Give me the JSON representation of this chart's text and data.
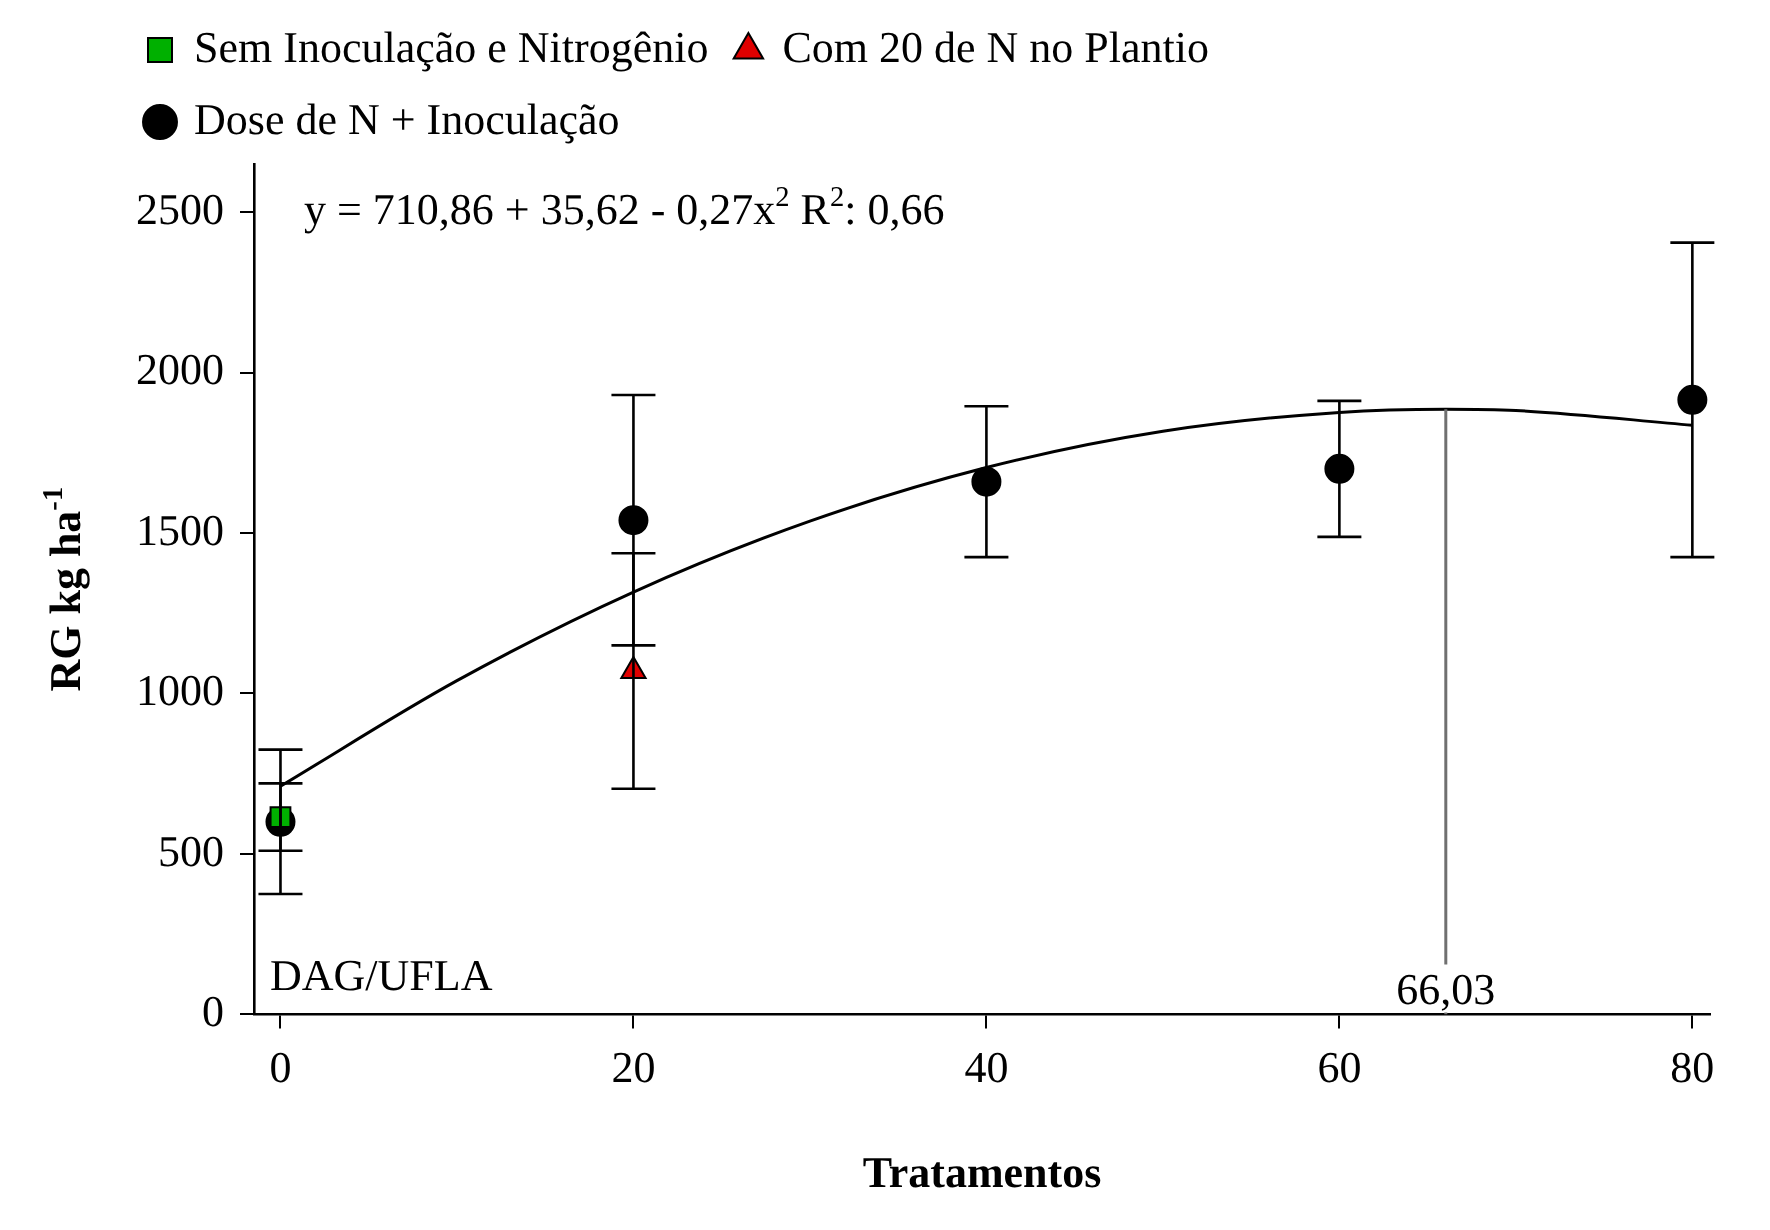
{
  "chart_data": {
    "type": "scatter",
    "xlabel": "Tratamentos",
    "ylabel": "RG kg ha$^{-1}$",
    "xlim": [
      -1.5,
      81
    ],
    "ylim": [
      0,
      2650
    ],
    "xticks": [
      0,
      20,
      40,
      60,
      80
    ],
    "yticks": [
      0,
      500,
      1000,
      1500,
      2000,
      2500
    ],
    "legend": "top left",
    "series": [
      {
        "name": "Dose de N + Inoculação",
        "color": "#000000",
        "marker": "circle",
        "x": [
          0,
          20,
          40,
          60,
          80
        ],
        "values": [
          600,
          1540,
          1660,
          1700,
          1915
        ],
        "errors": [
          225,
          390,
          235,
          212,
          490
        ]
      },
      {
        "name": "Com 20 de N no Plantio",
        "color": "#e00000",
        "marker": "triangle",
        "x": [
          20
        ],
        "values": [
          1070
        ],
        "errors": [
          367
        ]
      },
      {
        "name": "Sem Inoculação e Nitrogênio",
        "color": "#00b000",
        "marker": "square",
        "x": [
          0
        ],
        "values": [
          615
        ],
        "errors": [
          105
        ]
      },
      {
        "type": "line",
        "color": "#000000",
        "marker": "none",
        "x": [
          0,
          10,
          20,
          30,
          40,
          50,
          60,
          66.03,
          70,
          80
        ],
        "values": [
          711,
          1040,
          1316,
          1537,
          1704,
          1817,
          1876,
          1886,
          1882,
          1836
        ]
      },
      {
        "type": "line",
        "color": "#707070",
        "marker": "none",
        "x": [
          66.03,
          66.03
        ],
        "values": [
          0,
          1886
        ]
      }
    ],
    "annotations": [
      "y = 710,86 + 35,62 - 0,27x$^{2}$ R$^{2}$: 0,66",
      "DAG/UFLA",
      {
        "text": "66,03",
        "x": 66.03,
        "y": 0
      }
    ]
  }
}
